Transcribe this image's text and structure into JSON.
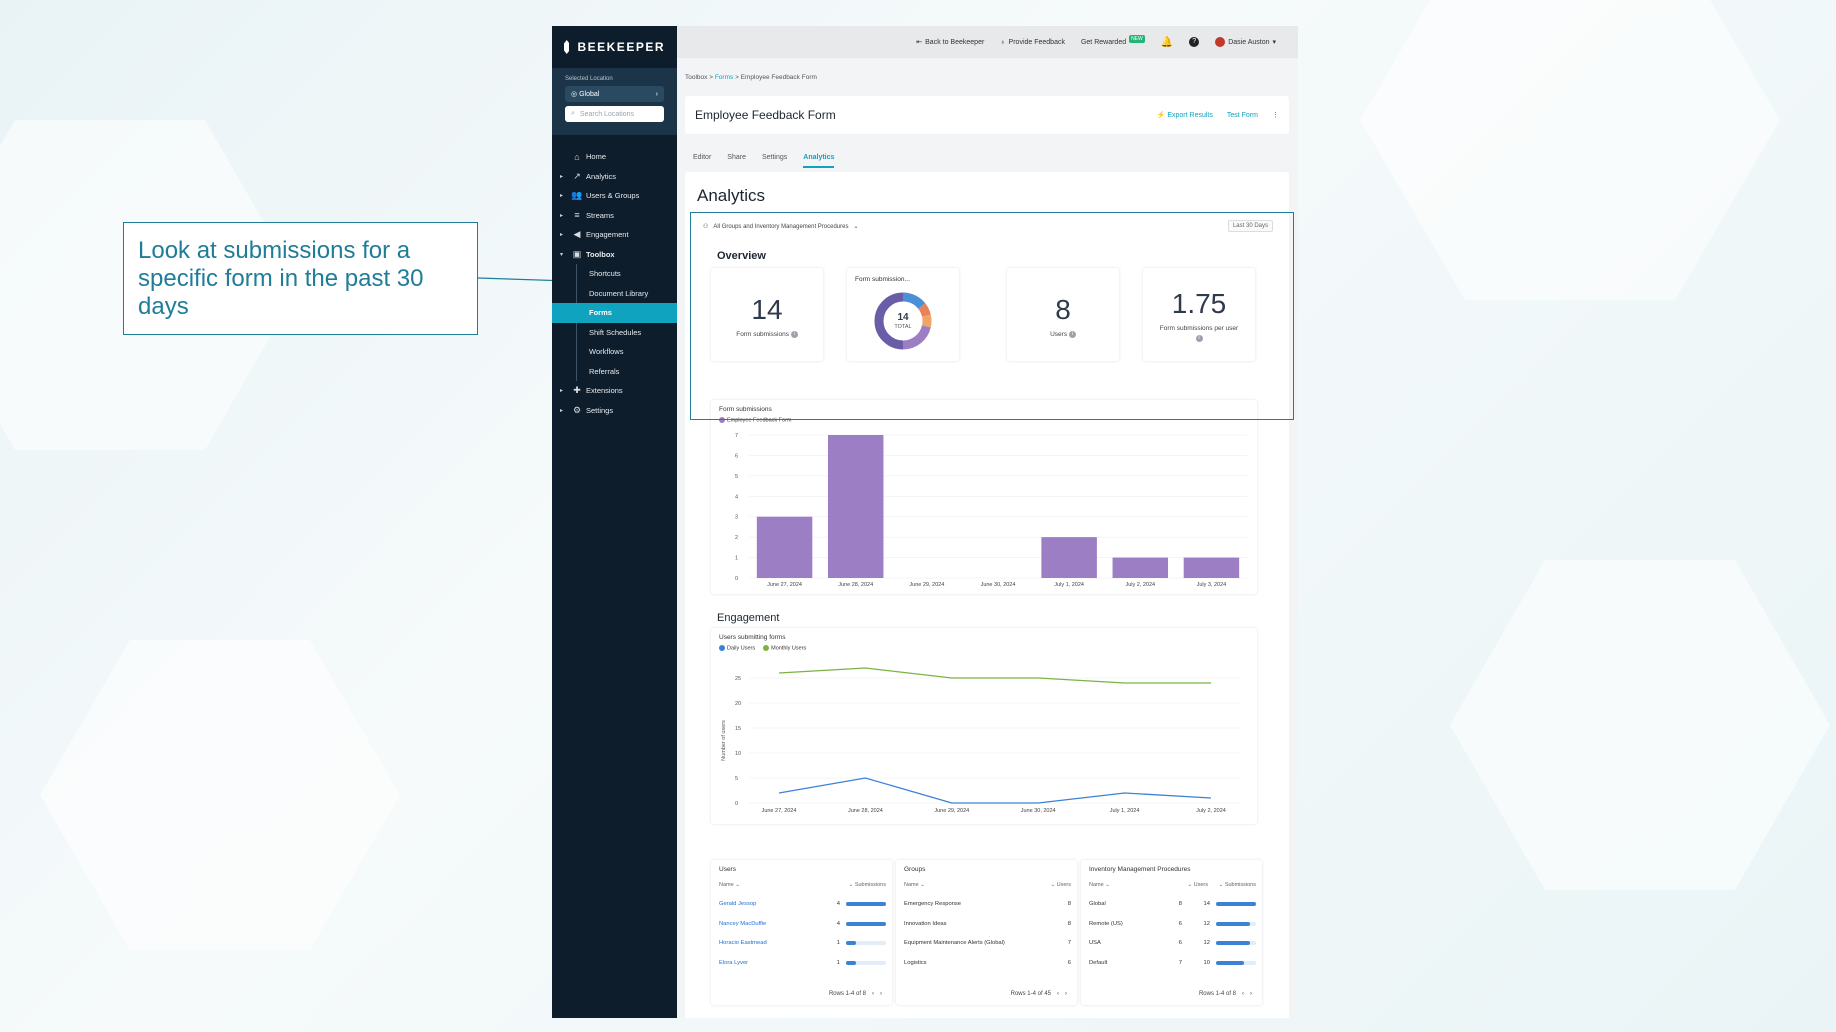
{
  "callout": {
    "text": "Look at submissions for a specific form in the past 30 days"
  },
  "sidebar": {
    "brand": "BEEKEEPER",
    "location_label": "Selected Location",
    "location_value": "Global",
    "search_placeholder": "Search Locations",
    "items": [
      {
        "label": "Home",
        "icon": "home-icon",
        "arrow": false
      },
      {
        "label": "Analytics",
        "icon": "analytics-icon",
        "arrow": true
      },
      {
        "label": "Users & Groups",
        "icon": "users-icon",
        "arrow": true
      },
      {
        "label": "Streams",
        "icon": "streams-icon",
        "arrow": true
      },
      {
        "label": "Engagement",
        "icon": "megaphone-icon",
        "arrow": true
      },
      {
        "label": "Toolbox",
        "icon": "toolbox-icon",
        "arrow": true
      }
    ],
    "toolbox_sub": [
      "Shortcuts",
      "Document Library",
      "Forms",
      "Shift Schedules",
      "Workflows",
      "Referrals"
    ],
    "bottom_items": [
      {
        "label": "Extensions",
        "icon": "puzzle-icon"
      },
      {
        "label": "Settings",
        "icon": "gear-icon"
      }
    ]
  },
  "topbar": {
    "back": "Back to Beekeeper",
    "feedback": "Provide Feedback",
    "rewarded": "Get Rewarded",
    "new_badge": "NEW",
    "user": "Dasie Auston"
  },
  "breadcrumb": {
    "root": "Toolbox",
    "mid": "Forms",
    "current": "Employee Feedback Form",
    "sep": ">"
  },
  "header": {
    "title": "Employee Feedback Form",
    "export": "Export Results",
    "test": "Test Form"
  },
  "tabs": [
    "Editor",
    "Share",
    "Settings",
    "Analytics"
  ],
  "analytics": {
    "title": "Analytics",
    "filter": "All Groups and Inventory Management Procedures",
    "date_range": "Last 30 Days",
    "overview_title": "Overview",
    "kpis": {
      "submissions_value": "14",
      "submissions_label": "Form submissions",
      "donut_label": "Form submission...",
      "donut_total": "14",
      "donut_total_label": "TOTAL",
      "users_value": "8",
      "users_label": "Users",
      "per_user_value": "1.75",
      "per_user_label": "Form submissions per user"
    },
    "donut_colors": [
      "#4a90d9",
      "#e8825a",
      "#f0a566",
      "#9b7ec4",
      "#6a5da8"
    ],
    "donut_values": [
      2,
      1,
      1,
      3,
      7
    ],
    "engagement_title": "Engagement"
  },
  "chart_data": [
    {
      "type": "bar",
      "title": "Form submissions",
      "categories": [
        "June 27, 2024",
        "June 28, 2024",
        "June 29, 2024",
        "June 30, 2024",
        "July 1, 2024",
        "July 2, 2024",
        "July 3, 2024"
      ],
      "series": [
        {
          "name": "Employee Feedback Form",
          "values": [
            3,
            7,
            0,
            0,
            2,
            1,
            1
          ],
          "color": "#9b7ec4"
        }
      ],
      "ylim": [
        0,
        7
      ],
      "yticks": [
        "0",
        "1",
        "2",
        "3",
        "4",
        "5",
        "6",
        "7"
      ],
      "grid": true
    },
    {
      "type": "line",
      "title": "Users submitting forms",
      "ylabel": "Number of users",
      "categories": [
        "June 27, 2024",
        "June 28, 2024",
        "June 29, 2024",
        "June 30, 2024",
        "July 1, 2024",
        "July 2, 2024"
      ],
      "series": [
        {
          "name": "Daily Users",
          "values": [
            2,
            5,
            0,
            0,
            2,
            1
          ],
          "color": "#3b82d6"
        },
        {
          "name": "Monthly Users",
          "values": [
            26,
            27,
            25,
            25,
            24,
            24
          ],
          "color": "#7cb342"
        }
      ],
      "ylim": [
        0,
        25
      ],
      "yticks": [
        "0",
        "5",
        "10",
        "15",
        "20",
        "25"
      ],
      "grid": true
    }
  ],
  "tables": [
    {
      "title": "Users",
      "col1": "Name",
      "col2": "Submissions",
      "footer": "Rows 1-4 of 8",
      "rows": [
        {
          "name": "Gerald Jessop",
          "v1": "4",
          "frac": 1.0,
          "link": true
        },
        {
          "name": "Nancey MacDuffie",
          "v1": "4",
          "frac": 1.0,
          "link": true
        },
        {
          "name": "Horacio Eastmead",
          "v1": "1",
          "frac": 0.25,
          "link": true
        },
        {
          "name": "Elora Lyver",
          "v1": "1",
          "frac": 0.25,
          "link": true
        }
      ]
    },
    {
      "title": "Groups",
      "col1": "Name",
      "col2": "Users",
      "footer": "Rows 1-4 of 45",
      "rows": [
        {
          "name": "Emergency Response",
          "v1": "8"
        },
        {
          "name": "Innovation Ideas",
          "v1": "8"
        },
        {
          "name": "Equipment Maintenance Alerts (Global)",
          "v1": "7"
        },
        {
          "name": "Logistics",
          "v1": "6"
        }
      ]
    },
    {
      "title": "Inventory Management Procedures",
      "col1": "Name",
      "col2": "Users",
      "col3": "Submissions",
      "footer": "Rows 1-4 of 8",
      "rows": [
        {
          "name": "Global",
          "v1": "8",
          "v2": "14",
          "frac": 1.0
        },
        {
          "name": "Remote (US)",
          "v1": "6",
          "v2": "12",
          "frac": 0.86
        },
        {
          "name": "USA",
          "v1": "6",
          "v2": "12",
          "frac": 0.86
        },
        {
          "name": "Default",
          "v1": "7",
          "v2": "10",
          "frac": 0.71
        }
      ]
    }
  ]
}
